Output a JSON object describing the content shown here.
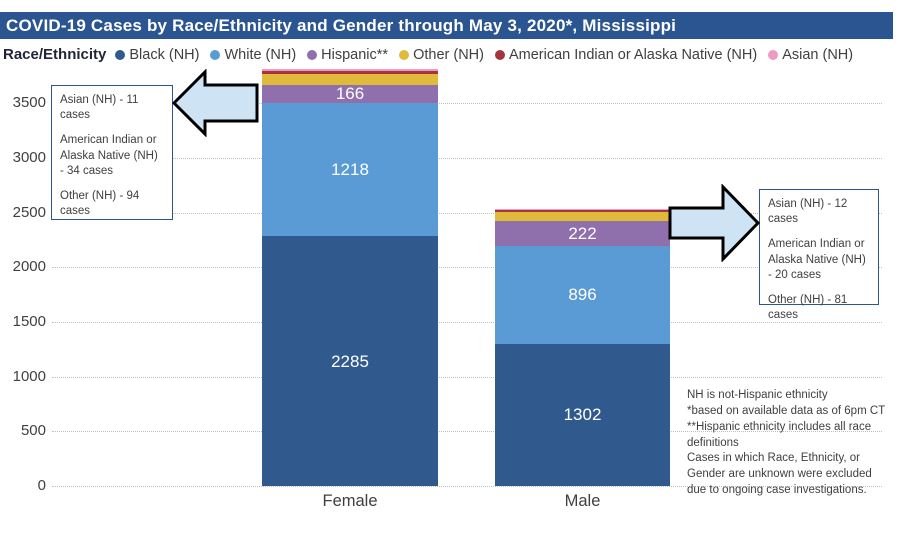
{
  "header": {
    "title": "COVID-19 Cases by Race/Ethnicity and Gender through May 3, 2020*, Mississippi",
    "bar_color": "#2B5591"
  },
  "legend": {
    "label": "Race/Ethnicity"
  },
  "chart_data": {
    "type": "stacked-bar",
    "title": "COVID-19 Cases by Race/Ethnicity and Gender through May 3, 2020*, Mississippi",
    "categories": [
      "Female",
      "Male"
    ],
    "series": [
      {
        "name": "Black (NH)",
        "color": "#305A8D",
        "values": [
          2285,
          1302
        ]
      },
      {
        "name": "White (NH)",
        "color": "#5B9BD5",
        "values": [
          1218,
          896
        ]
      },
      {
        "name": "Hispanic**",
        "color": "#8F6FAC",
        "values": [
          166,
          222
        ]
      },
      {
        "name": "Other (NH)",
        "color": "#E0BB3B",
        "values": [
          94,
          81
        ]
      },
      {
        "name": "American Indian or Alaska Native (NH)",
        "color": "#A4353F",
        "values": [
          34,
          20
        ]
      },
      {
        "name": "Asian (NH)",
        "color": "#EE9AC4",
        "values": [
          11,
          12
        ]
      }
    ],
    "totals": {
      "Female": 3808,
      "Male": 2533
    },
    "ylim": [
      0,
      3500
    ],
    "ytick_step": 500,
    "grid": "dotted-horizontal",
    "legend_position": "top",
    "value_label_min": 150
  },
  "callouts": {
    "female": {
      "lines": [
        "Asian (NH) - 11 cases",
        "American Indian or Alaska Native (NH) - 34 cases",
        "Other (NH) - 94 cases"
      ]
    },
    "male": {
      "lines": [
        "Asian (NH) - 12 cases",
        "American Indian or Alaska Native (NH) - 20 cases",
        "Other (NH) - 81 cases"
      ]
    }
  },
  "footnotes": {
    "lines": [
      "NH is not-Hispanic ethnicity",
      "*based on available data as of 6pm CT",
      "**Hispanic ethnicity includes all race definitions",
      "Cases in which Race, Ethnicity, or Gender are unknown were excluded due to ongoing case investigations."
    ]
  },
  "colors": {
    "accent_border": "#2F5496",
    "arrow_fill": "#CEE4F5",
    "text": "#404040",
    "grid": "#BFBFBF"
  }
}
